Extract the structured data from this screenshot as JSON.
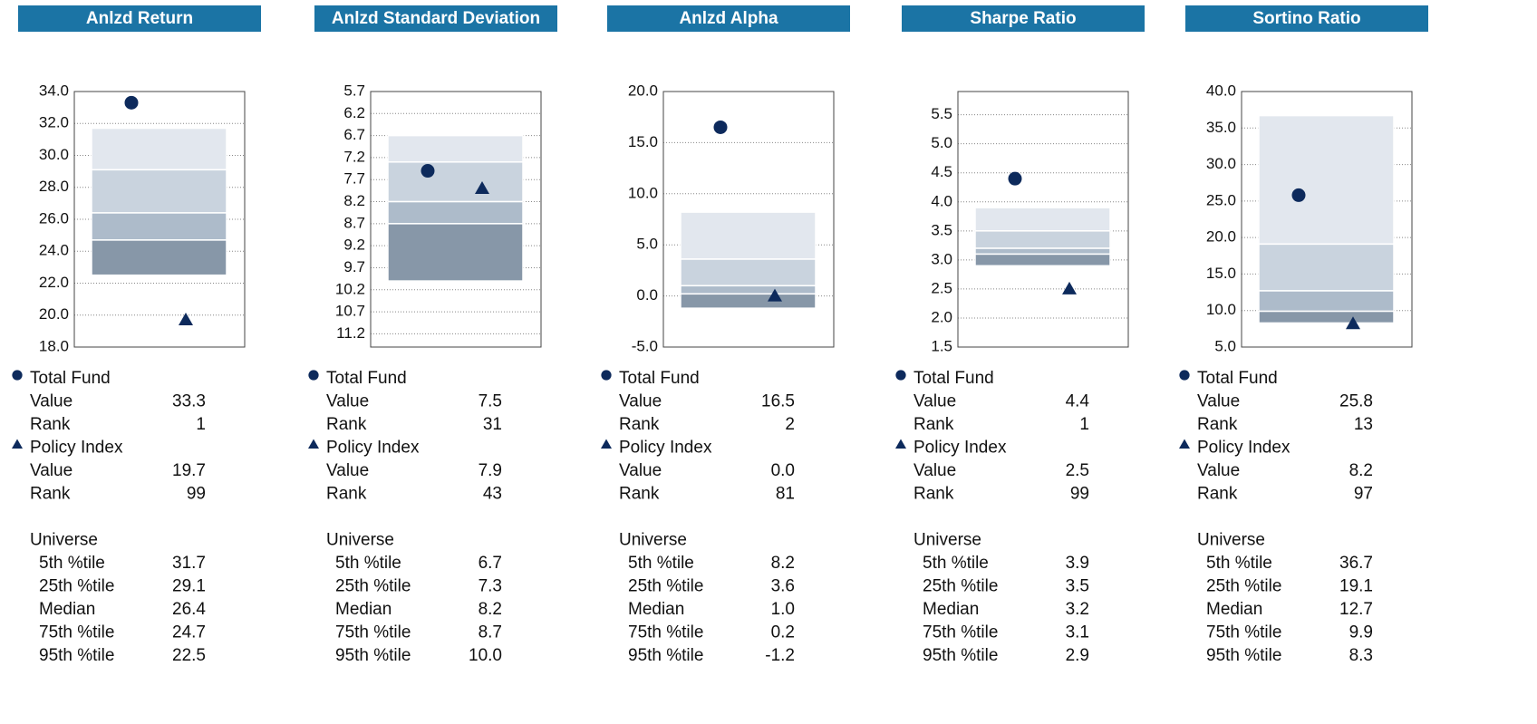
{
  "chart_data": [
    {
      "type": "floating_bar",
      "title": "Anlzd Return",
      "ylim": [
        18,
        34
      ],
      "inverted": false,
      "yticks": [
        {
          "value": 18,
          "label": "18.0"
        },
        {
          "value": 20,
          "label": "20.0"
        },
        {
          "value": 22,
          "label": "22.0"
        },
        {
          "value": 24,
          "label": "24.0"
        },
        {
          "value": 26,
          "label": "26.0"
        },
        {
          "value": 28,
          "label": "28.0"
        },
        {
          "value": 30,
          "label": "30.0"
        },
        {
          "value": 32,
          "label": "32.0"
        },
        {
          "value": 34,
          "label": "34.0"
        }
      ],
      "row_labels": [
        "Value",
        "Rank"
      ],
      "series": [
        {
          "name": "Total Fund",
          "marker": "circle",
          "color": "#0d2a5c",
          "value": 33.3,
          "rank": 1
        },
        {
          "name": "Policy Index",
          "marker": "triangle",
          "color": "#0d2a5c",
          "value": 19.7,
          "rank": 99
        }
      ],
      "universe": {
        "name": "Universe",
        "labels": [
          "5th %tile",
          "25th %tile",
          "Median",
          "75th %tile",
          "95th %tile"
        ],
        "values": [
          31.7,
          29.1,
          26.4,
          24.7,
          22.5
        ],
        "colors": [
          "#e2e7ee",
          "#c9d3de",
          "#adbbca",
          "#8797a8"
        ]
      }
    },
    {
      "type": "floating_bar",
      "title": "Anlzd Standard Deviation",
      "ylim": [
        5.7,
        11.5
      ],
      "inverted": true,
      "yticks": [
        5.7,
        6.2,
        6.7,
        7.2,
        7.7,
        8.2,
        8.7,
        9.2,
        9.7,
        10.2,
        10.7,
        11.2
      ],
      "row_labels": [
        "Value",
        "Rank"
      ],
      "series": [
        {
          "name": "Total Fund",
          "marker": "circle",
          "color": "#0d2a5c",
          "value": 7.5,
          "rank": 31
        },
        {
          "name": "Policy Index",
          "marker": "triangle",
          "color": "#0d2a5c",
          "value": 7.9,
          "rank": 43
        }
      ],
      "universe": {
        "name": "Universe",
        "labels": [
          "5th %tile",
          "25th %tile",
          "Median",
          "75th %tile",
          "95th %tile"
        ],
        "values": [
          6.7,
          7.3,
          8.2,
          8.7,
          10
        ],
        "value_labels": [
          "6.7",
          "7.3",
          "8.2",
          "8.7",
          "10.0"
        ],
        "colors": [
          "#e2e7ee",
          "#c9d3de",
          "#adbbca",
          "#8797a8"
        ]
      }
    },
    {
      "type": "floating_bar",
      "title": "Anlzd Alpha",
      "ylim": [
        -5,
        20
      ],
      "inverted": false,
      "yticks": [
        {
          "value": -5,
          "label": "-5.0"
        },
        {
          "value": 0,
          "label": "0.0"
        },
        {
          "value": 5,
          "label": "5.0"
        },
        {
          "value": 10,
          "label": "10.0"
        },
        {
          "value": 15,
          "label": "15.0"
        },
        {
          "value": 20,
          "label": "20.0"
        }
      ],
      "row_labels": [
        "Value",
        "Rank"
      ],
      "series": [
        {
          "name": "Total Fund",
          "marker": "circle",
          "color": "#0d2a5c",
          "value": 16.5,
          "rank": 2
        },
        {
          "name": "Policy Index",
          "marker": "triangle",
          "color": "#0d2a5c",
          "value": 0,
          "value_label": "0.0",
          "rank": 81
        }
      ],
      "universe": {
        "name": "Universe",
        "labels": [
          "5th %tile",
          "25th %tile",
          "Median",
          "75th %tile",
          "95th %tile"
        ],
        "values": [
          8.2,
          3.6,
          1,
          0.2,
          -1.2
        ],
        "value_labels": [
          "8.2",
          "3.6",
          "1.0",
          "0.2",
          "-1.2"
        ],
        "colors": [
          "#e2e7ee",
          "#c9d3de",
          "#adbbca",
          "#8797a8"
        ]
      }
    },
    {
      "type": "floating_bar",
      "title": "Sharpe Ratio",
      "ylim": [
        1.5,
        5.9
      ],
      "inverted": false,
      "yticks": [
        1.5,
        {
          "value": 2,
          "label": "2.0"
        },
        2.5,
        {
          "value": 3,
          "label": "3.0"
        },
        3.5,
        {
          "value": 4,
          "label": "4.0"
        },
        4.5,
        {
          "value": 5,
          "label": "5.0"
        },
        5.5
      ],
      "row_labels": [
        "Value",
        "Rank"
      ],
      "series": [
        {
          "name": "Total Fund",
          "marker": "circle",
          "color": "#0d2a5c",
          "value": 4.4,
          "rank": 1
        },
        {
          "name": "Policy Index",
          "marker": "triangle",
          "color": "#0d2a5c",
          "value": 2.5,
          "rank": 99
        }
      ],
      "universe": {
        "name": "Universe",
        "labels": [
          "5th %tile",
          "25th %tile",
          "Median",
          "75th %tile",
          "95th %tile"
        ],
        "values": [
          3.9,
          3.5,
          3.2,
          3.1,
          2.9
        ],
        "colors": [
          "#e2e7ee",
          "#c9d3de",
          "#adbbca",
          "#8797a8"
        ]
      }
    },
    {
      "type": "floating_bar",
      "title": "Sortino Ratio",
      "ylim": [
        5,
        40
      ],
      "inverted": false,
      "yticks": [
        {
          "value": 5,
          "label": "5.0"
        },
        {
          "value": 10,
          "label": "10.0"
        },
        {
          "value": 15,
          "label": "15.0"
        },
        {
          "value": 20,
          "label": "20.0"
        },
        {
          "value": 25,
          "label": "25.0"
        },
        {
          "value": 30,
          "label": "30.0"
        },
        {
          "value": 35,
          "label": "35.0"
        },
        {
          "value": 40,
          "label": "40.0"
        }
      ],
      "row_labels": [
        "Value",
        "Rank"
      ],
      "series": [
        {
          "name": "Total Fund",
          "marker": "circle",
          "color": "#0d2a5c",
          "value": 25.8,
          "rank": 13
        },
        {
          "name": "Policy Index",
          "marker": "triangle",
          "color": "#0d2a5c",
          "value": 8.2,
          "rank": 97
        }
      ],
      "universe": {
        "name": "Universe",
        "labels": [
          "5th %tile",
          "25th %tile",
          "Median",
          "75th %tile",
          "95th %tile"
        ],
        "values": [
          36.7,
          19.1,
          12.7,
          9.9,
          8.3
        ],
        "colors": [
          "#e2e7ee",
          "#c9d3de",
          "#adbbca",
          "#8797a8"
        ]
      }
    }
  ]
}
